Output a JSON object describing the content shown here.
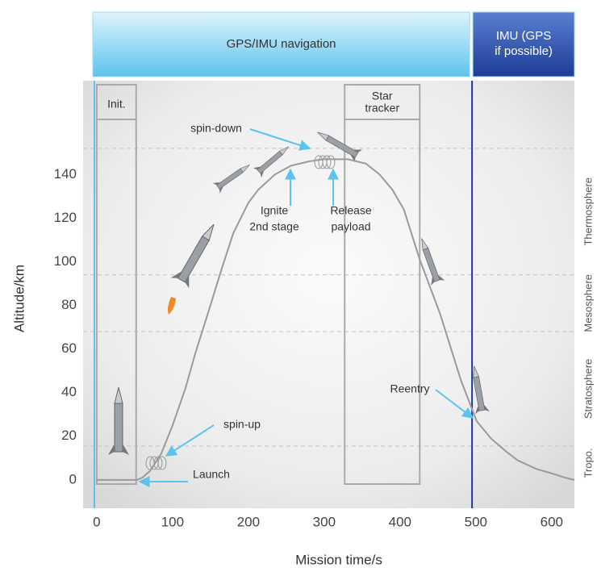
{
  "chart_data": {
    "type": "line",
    "x_label": "Mission time/s",
    "y_label": "Altitude/km",
    "x": [
      0,
      50,
      53,
      60,
      70,
      85,
      100,
      117,
      130,
      149,
      165,
      180,
      200,
      213,
      235,
      256,
      280,
      299,
      331,
      355,
      373,
      390,
      405,
      426,
      453,
      480,
      501,
      520,
      540,
      555,
      580,
      600,
      618,
      630
    ],
    "series": [
      {
        "color": "#9a9a9a",
        "values": [
          0,
          0,
          0,
          1,
          4,
          12,
          25,
          42,
          58,
          79,
          97,
          113,
          127,
          133,
          140,
          144,
          146,
          147,
          147,
          145,
          140,
          133,
          124,
          101,
          76,
          46,
          27,
          19,
          13,
          9,
          5,
          3,
          1,
          0
        ]
      }
    ],
    "xlim": [
      -18,
      630
    ],
    "ylim": [
      -13,
      183
    ],
    "xticks": [
      0,
      100,
      200,
      300,
      400,
      500,
      600
    ],
    "yticks": [
      0,
      20,
      40,
      60,
      80,
      100,
      120,
      140
    ],
    "navigation": [
      {
        "label": "GPS/IMU navigation"
      },
      {
        "label": "IMU (GPS if possible)"
      }
    ],
    "nav_switch": 495,
    "phases": [
      {
        "label": [
          "Init."
        ],
        "start": 0,
        "end": 52
      },
      {
        "label": [
          "Star",
          "tracker"
        ],
        "start": 327,
        "end": 426
      }
    ],
    "layers": [
      {
        "name": "Tropo.",
        "top": 15.5
      },
      {
        "name": "Stratosphere",
        "top": 68
      },
      {
        "name": "Mesosphere",
        "top": 94
      },
      {
        "name": "Thermosphere",
        "top": 152
      }
    ],
    "annotations": [
      {
        "text": [
          "spin-down"
        ]
      },
      {
        "text": [
          "Ignite",
          "2nd stage"
        ]
      },
      {
        "text": [
          "Release",
          "payload"
        ]
      },
      {
        "text": [
          "spin-up"
        ]
      },
      {
        "text": [
          "Launch"
        ]
      },
      {
        "text": [
          "Reentry"
        ]
      }
    ]
  }
}
